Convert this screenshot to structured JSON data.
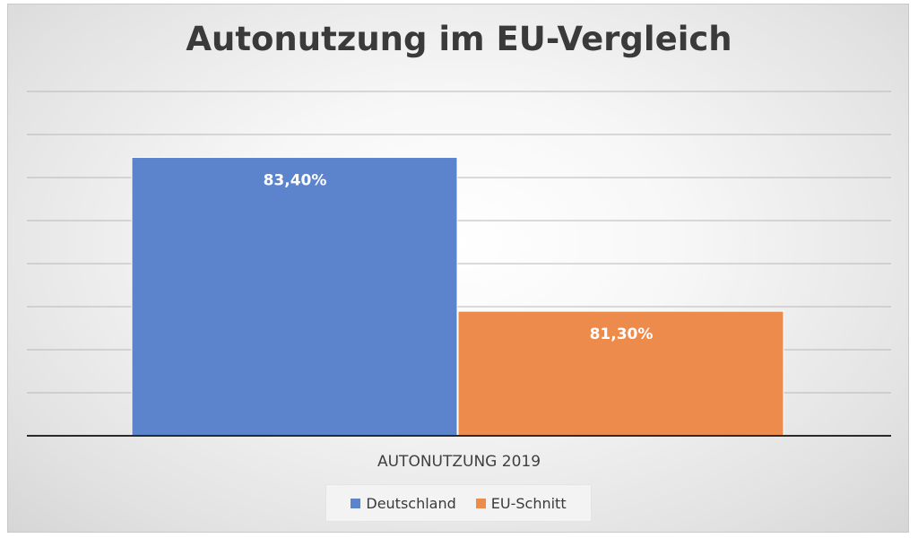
{
  "chart_data": {
    "type": "bar",
    "title": "Autonutzung im EU-Vergleich",
    "categories": [
      "AUTONUTZUNG 2019"
    ],
    "series": [
      {
        "name": "Deutschland",
        "values": [
          83.4
        ],
        "label": "83,40%",
        "color": "#5b84cd"
      },
      {
        "name": "EU-Schnitt",
        "values": [
          81.3
        ],
        "label": "81,30%",
        "color": "#ec8b4b"
      }
    ],
    "ylim": [
      79.6,
      84.3
    ],
    "grid": true,
    "legend_position": "bottom"
  }
}
